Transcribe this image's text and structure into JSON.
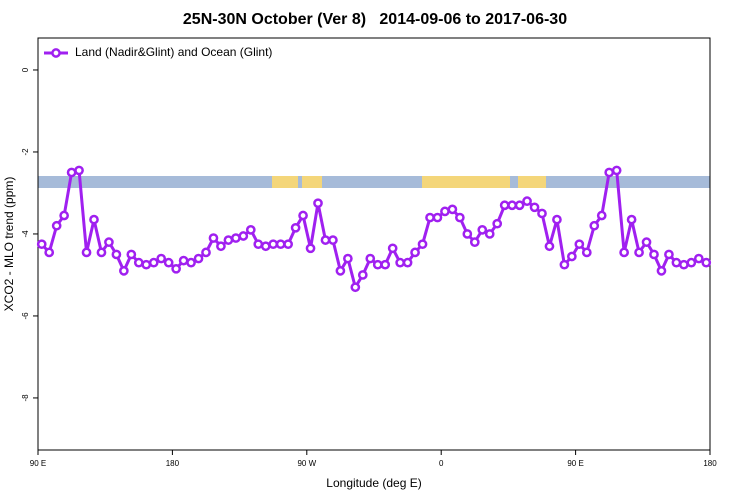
{
  "chart_data": {
    "type": "line",
    "title": "25N-30N October (Ver 8)   2014-09-06 to 2017-06-30",
    "x_label": "Longitude (deg E)",
    "y_label": "XCO2 - MLO trend (ppm)",
    "x": [
      92.5,
      97.5,
      102.5,
      107.5,
      112.5,
      117.5,
      122.5,
      127.5,
      132.5,
      137.5,
      142.5,
      147.5,
      152.5,
      157.5,
      162.5,
      167.5,
      172.5,
      177.5,
      182.5,
      187.5,
      192.5,
      197.5,
      202.5,
      207.5,
      212.5,
      217.5,
      222.5,
      227.5,
      232.5,
      237.5,
      242.5,
      247.5,
      252.5,
      257.5,
      262.5,
      267.5,
      272.5,
      277.5,
      282.5,
      287.5,
      292.5,
      297.5,
      302.5,
      307.5,
      312.5,
      317.5,
      322.5,
      327.5,
      332.5,
      337.5,
      342.5,
      347.5,
      352.5,
      357.5,
      362.5,
      367.5,
      372.5,
      377.5,
      382.5,
      387.5,
      392.5,
      397.5,
      402.5,
      407.5,
      412.5,
      417.5,
      422.5,
      427.5,
      432.5,
      437.5,
      442.5,
      447.5,
      452.5,
      457.5,
      462.5,
      467.5,
      472.5,
      477.5,
      482.5,
      487.5,
      492.5,
      497.5,
      502.5,
      507.5,
      512.5,
      517.5,
      522.5,
      527.5,
      532.5,
      537.5
    ],
    "series": [
      {
        "name": "Land (Nadir&Glint) and Ocean (Glint)",
        "color": "#a020f0",
        "values": [
          -4.25,
          -4.45,
          -3.8,
          -3.55,
          -2.5,
          -2.45,
          -4.45,
          -3.65,
          -4.45,
          -4.2,
          -4.5,
          -4.9,
          -4.5,
          -4.7,
          -4.75,
          -4.7,
          -4.6,
          -4.7,
          -4.85,
          -4.65,
          -4.7,
          -4.6,
          -4.45,
          -4.1,
          -4.3,
          -4.15,
          -4.1,
          -4.05,
          -3.9,
          -4.25,
          -4.3,
          -4.25,
          -4.25,
          -4.25,
          -3.85,
          -3.55,
          -4.35,
          -3.25,
          -4.15,
          -4.15,
          -4.9,
          -4.6,
          -5.3,
          -5.0,
          -4.6,
          -4.75,
          -4.75,
          -4.35,
          -4.7,
          -4.7,
          -4.45,
          -4.25,
          -3.6,
          -3.6,
          -3.45,
          -3.4,
          -3.6,
          -4.0,
          -4.2,
          -3.9,
          -4.0,
          -3.75,
          -3.3,
          -3.3,
          -3.3,
          -3.2,
          -3.35,
          -3.5,
          -4.3,
          -3.65,
          -4.75,
          -4.55,
          -4.25,
          -4.45,
          -3.8,
          -3.55,
          -2.5,
          -2.45,
          -4.45,
          -3.65,
          -4.45,
          -4.2,
          -4.5,
          -4.9,
          -4.5,
          -4.7,
          -4.75,
          -4.7,
          -4.6,
          -4.7
        ]
      }
    ],
    "xlim": [
      90,
      540
    ],
    "xticks": [
      {
        "value": 90,
        "label": "90 E"
      },
      180,
      {
        "value": 270,
        "label": "90 W"
      },
      {
        "value": 360,
        "label": "0"
      },
      {
        "value": 450,
        "label": "90 E"
      },
      {
        "value": 540,
        "label": "180"
      }
    ],
    "ylim": [
      -9.27,
      0.78
    ],
    "yticks": [
      0,
      -2,
      -4,
      -6,
      -8
    ],
    "legend": "top-left"
  }
}
